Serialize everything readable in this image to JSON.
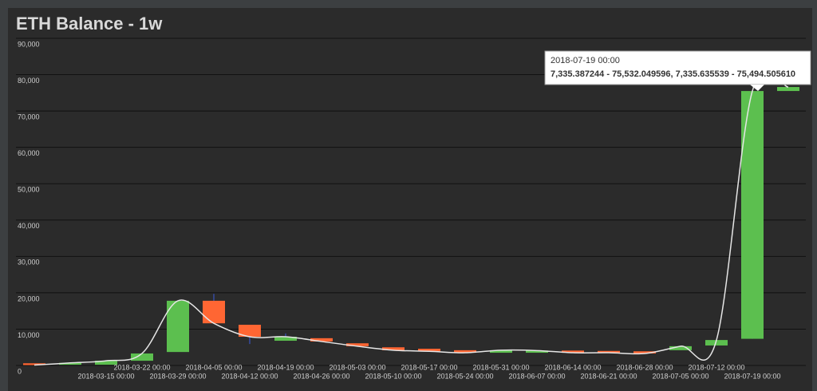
{
  "chart_data": {
    "type": "candlestick",
    "title": "ETH Balance - 1w",
    "categories": [
      null,
      null,
      "2018-03-15 00:00",
      "2018-03-22 00:00",
      "2018-03-29 00:00",
      "2018-04-05 00:00",
      "2018-04-12 00:00",
      "2018-04-19 00:00",
      "2018-04-26 00:00",
      "2018-05-03 00:00",
      "2018-05-10 00:00",
      "2018-05-17 00:00",
      "2018-05-24 00:00",
      "2018-05-31 00:00",
      "2018-06-07 00:00",
      "2018-06-14 00:00",
      "2018-06-21 00:00",
      "2018-06-28 00:00",
      "2018-07-05 00:00",
      "2018-07-12 00:00",
      "2018-07-19 00:00",
      null
    ],
    "open": [
      600,
      200,
      200,
      1300,
      3700,
      17800,
      11200,
      6800,
      7500,
      6100,
      5000,
      4600,
      4200,
      3500,
      3500,
      4100,
      4000,
      3900,
      4200,
      5500,
      7335.387244,
      75500
    ],
    "high": [
      600,
      700,
      1300,
      3300,
      17800,
      19700,
      11200,
      8800,
      7500,
      6100,
      5000,
      4600,
      4200,
      4200,
      4100,
      4100,
      4000,
      3900,
      5300,
      7000,
      75532.049596,
      76600
    ],
    "low": [
      100,
      200,
      200,
      1300,
      3700,
      11600,
      5900,
      6800,
      6600,
      5300,
      4200,
      3900,
      3500,
      3500,
      3500,
      3500,
      3500,
      3300,
      4200,
      5500,
      7335.635539,
      75500
    ],
    "close": [
      100,
      700,
      1300,
      3300,
      17800,
      11600,
      7900,
      7900,
      6600,
      5300,
      4200,
      3900,
      3500,
      4200,
      4100,
      3500,
      3500,
      3300,
      5300,
      7000,
      75494.50561,
      76600
    ],
    "up_color": "#5cbf4f",
    "down_color": "#ff6633",
    "wick_color": "#3b5bdb",
    "line_color": "#e6e6e6",
    "ylim": [
      0,
      90000
    ],
    "yticks": [
      0,
      {
        "value": 10000,
        "label": "10,000"
      },
      {
        "value": 20000,
        "label": "20,000"
      },
      {
        "value": 30000,
        "label": "30,000"
      },
      {
        "value": 40000,
        "label": "40,000"
      },
      {
        "value": 50000,
        "label": "50,000"
      },
      {
        "value": 60000,
        "label": "60,000"
      },
      {
        "value": 70000,
        "label": "70,000"
      },
      {
        "value": 80000,
        "label": "80,000"
      },
      {
        "value": 90000,
        "label": "90,000"
      }
    ],
    "grid": true,
    "tooltip": {
      "title": "2018-07-19 00:00",
      "text": "7,335.387244 - 75,532.049596, 7,335.635539 - 75,494.505610"
    }
  }
}
